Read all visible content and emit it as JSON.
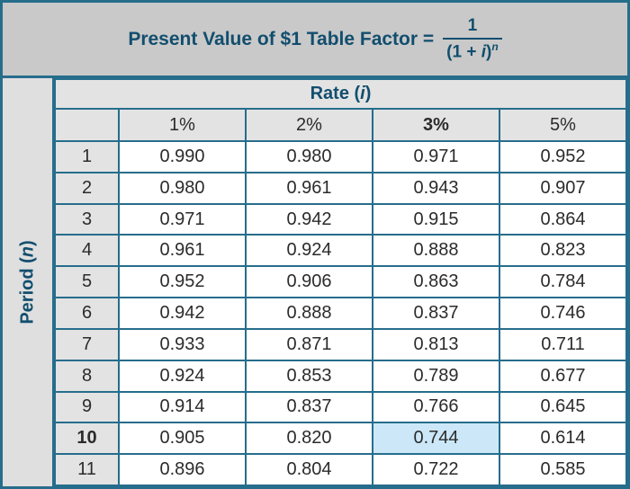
{
  "title": {
    "prefix": "Present Value of $1 Table Factor =",
    "fraction": {
      "numerator": "1",
      "den_open": "(1 + ",
      "den_var": "i",
      "den_close": ")",
      "exponent": "n"
    }
  },
  "table": {
    "rate_header": {
      "prefix": "Rate (",
      "var": "i",
      "suffix": ")"
    },
    "period_axis": {
      "prefix": "Period (",
      "var": "n",
      "suffix": ")"
    },
    "columns": [
      "1%",
      "2%",
      "3%",
      "5%"
    ],
    "bold_column_index": 2,
    "rows": [
      {
        "period": "1",
        "values": [
          "0.990",
          "0.980",
          "0.971",
          "0.952"
        ]
      },
      {
        "period": "2",
        "values": [
          "0.980",
          "0.961",
          "0.943",
          "0.907"
        ]
      },
      {
        "period": "3",
        "values": [
          "0.971",
          "0.942",
          "0.915",
          "0.864"
        ]
      },
      {
        "period": "4",
        "values": [
          "0.961",
          "0.924",
          "0.888",
          "0.823"
        ]
      },
      {
        "period": "5",
        "values": [
          "0.952",
          "0.906",
          "0.863",
          "0.784"
        ]
      },
      {
        "period": "6",
        "values": [
          "0.942",
          "0.888",
          "0.837",
          "0.746"
        ]
      },
      {
        "period": "7",
        "values": [
          "0.933",
          "0.871",
          "0.813",
          "0.711"
        ]
      },
      {
        "period": "8",
        "values": [
          "0.924",
          "0.853",
          "0.789",
          "0.677"
        ]
      },
      {
        "period": "9",
        "values": [
          "0.914",
          "0.837",
          "0.766",
          "0.645"
        ]
      },
      {
        "period": "10",
        "bold": true,
        "values": [
          "0.905",
          "0.820",
          "0.744",
          "0.614"
        ]
      },
      {
        "period": "11",
        "values": [
          "0.896",
          "0.804",
          "0.722",
          "0.585"
        ]
      }
    ],
    "highlight": {
      "row_index": 9,
      "col_index": 2
    }
  },
  "colors": {
    "border_teal": "#266d8c",
    "text_teal": "#124e6e",
    "title_band_bg": "#c9c9c9",
    "header_cell_bg": "#e3e3e3",
    "axis_strip_bg": "#dfdfdf",
    "highlight_blue": "#cce8f8",
    "cell_text": "#2b2b2b"
  },
  "chart_data": {
    "type": "table",
    "title": "Present Value of $1 Table Factor = 1 / (1 + i)^n",
    "column_group_label": "Rate (i)",
    "row_group_label": "Period (n)",
    "columns": [
      "1%",
      "2%",
      "3%",
      "5%"
    ],
    "periods": [
      1,
      2,
      3,
      4,
      5,
      6,
      7,
      8,
      9,
      10,
      11
    ],
    "values": [
      [
        0.99,
        0.98,
        0.971,
        0.952
      ],
      [
        0.98,
        0.961,
        0.943,
        0.907
      ],
      [
        0.971,
        0.942,
        0.915,
        0.864
      ],
      [
        0.961,
        0.924,
        0.888,
        0.823
      ],
      [
        0.952,
        0.906,
        0.863,
        0.784
      ],
      [
        0.942,
        0.888,
        0.837,
        0.746
      ],
      [
        0.933,
        0.871,
        0.813,
        0.711
      ],
      [
        0.924,
        0.853,
        0.789,
        0.677
      ],
      [
        0.914,
        0.837,
        0.766,
        0.645
      ],
      [
        0.905,
        0.82,
        0.744,
        0.614
      ],
      [
        0.896,
        0.804,
        0.722,
        0.585
      ]
    ],
    "highlighted_cell": {
      "period": 10,
      "rate": "3%",
      "value": 0.744
    },
    "bold_row_period": 10,
    "bold_column": "3%"
  }
}
